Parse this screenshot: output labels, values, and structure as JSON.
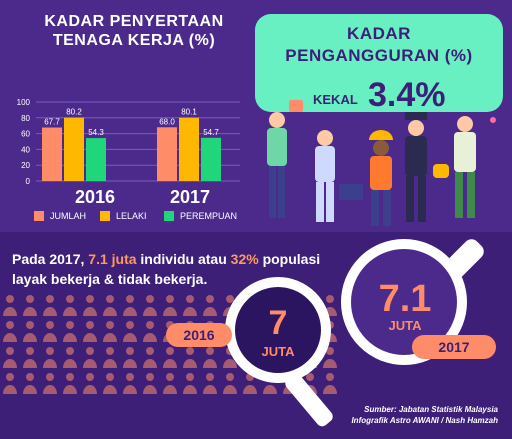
{
  "colors": {
    "background": "#4b2a8c",
    "jumlah": "#ff8c69",
    "lelaki": "#ffb800",
    "perempuan": "#1fd67a",
    "card": "#69f0c2",
    "accent": "#ff8c69"
  },
  "left_title": {
    "line1": "KADAR PENYERTAAN",
    "line2": "TENAGA KERJA (%)"
  },
  "unemployment": {
    "line1": "KADAR",
    "line2": "PENGANGGURAN (%)",
    "kekal": "KEKAL",
    "value": "3.4%"
  },
  "statement": {
    "part1": "Pada 2017, ",
    "hl1": "7.1 juta",
    "part2": " individu atau ",
    "hl2": "32%",
    "part3": " populasi",
    "line2": "layak bekerja & tidak bekerja."
  },
  "lens_2016": {
    "year": "2016",
    "number": "7",
    "unit": "JUTA"
  },
  "lens_2017": {
    "year": "2017",
    "number": "7.1",
    "unit": "JUTA"
  },
  "source": {
    "line1": "Sumber: Jabatan Statistik Malaysia",
    "line2": "Infografik Astro AWANI / Nash Hamzah"
  },
  "icons": [
    "worker-figures-icon",
    "magnifier-icon",
    "people-silhouettes-icon"
  ],
  "chart_data": {
    "type": "bar",
    "title": "KADAR PENYERTAAN TENAGA KERJA (%)",
    "categories": [
      "2016",
      "2017"
    ],
    "series": [
      {
        "name": "JUMLAH",
        "values": [
          67.7,
          68.0
        ],
        "labels": [
          "67.7",
          "68.0"
        ]
      },
      {
        "name": "LELAKI",
        "values": [
          80.2,
          80.1
        ],
        "labels": [
          "80.2",
          "80.1"
        ]
      },
      {
        "name": "PEREMPUAN",
        "values": [
          54.3,
          54.7
        ],
        "labels": [
          "54.3",
          "54.7"
        ]
      }
    ],
    "yticks": [
      "0",
      "20",
      "40",
      "60",
      "80",
      "100"
    ],
    "ylim": [
      0,
      100
    ],
    "legend_position": "bottom"
  }
}
